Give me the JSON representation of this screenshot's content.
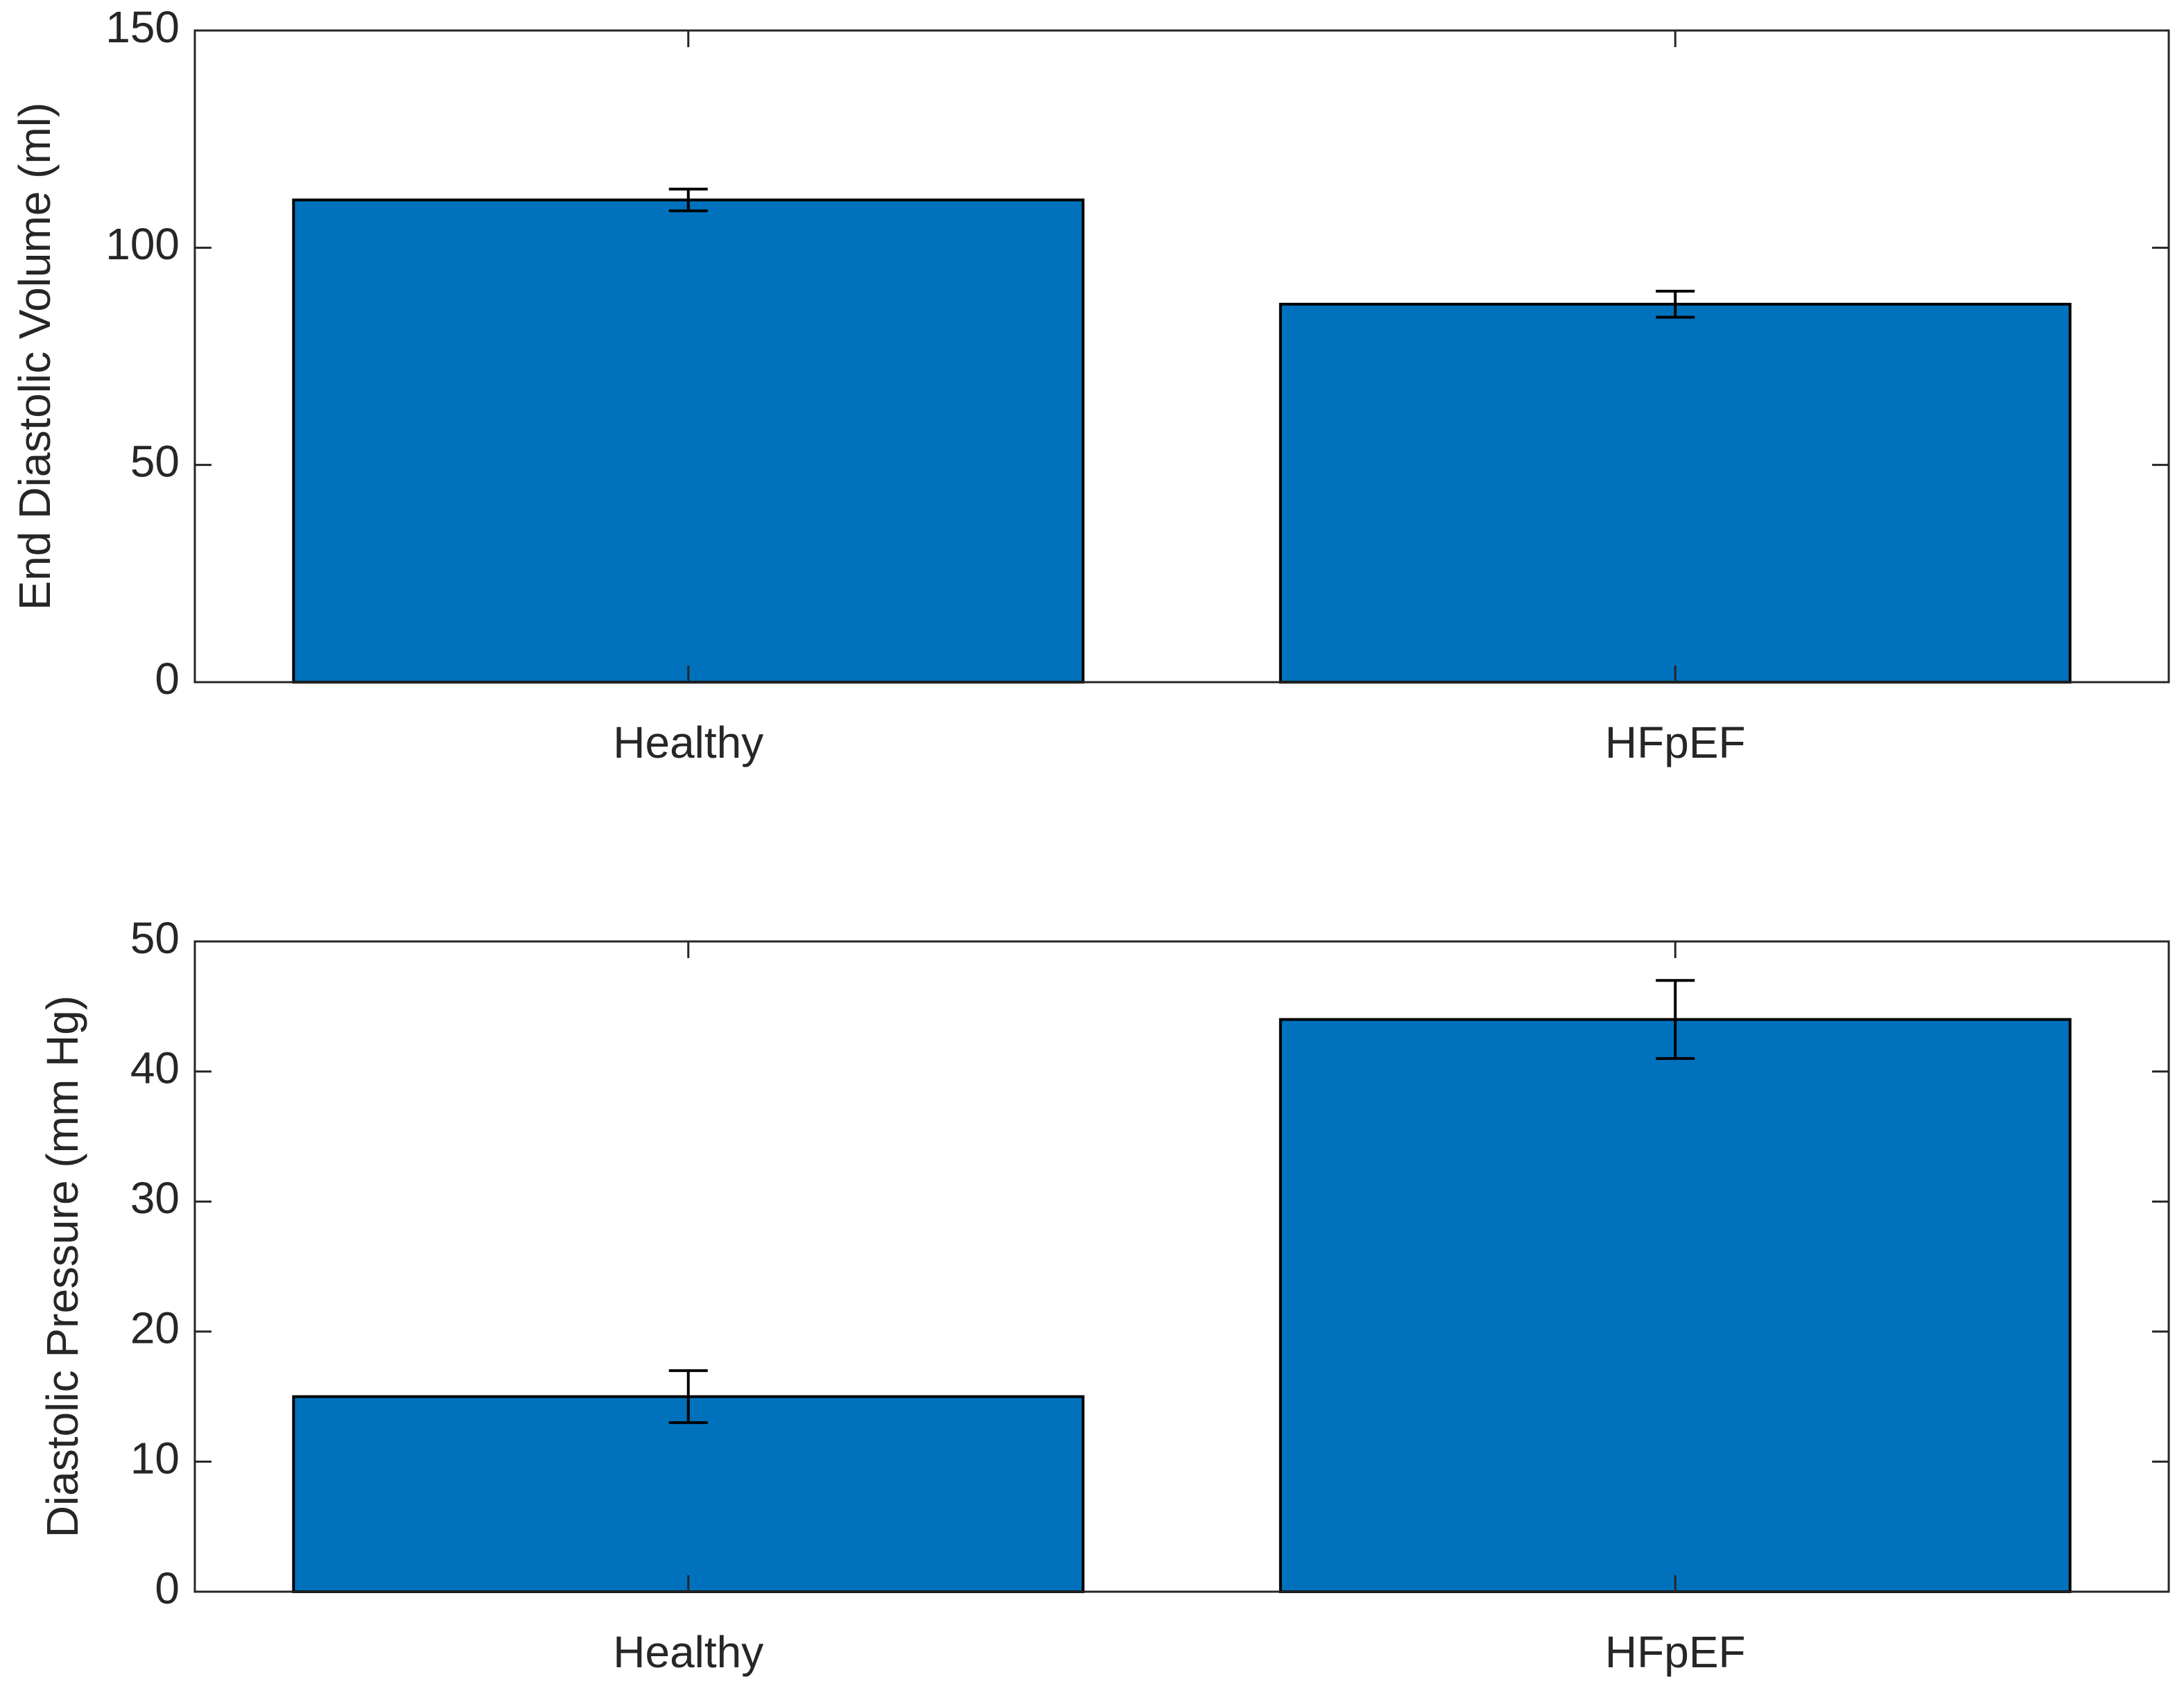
{
  "chart_data": [
    {
      "type": "bar",
      "ylabel": "End Diastolic Volume (ml)",
      "categories": [
        "Healthy",
        "HFpEF"
      ],
      "values": [
        111,
        87
      ],
      "errors": [
        2.5,
        3
      ],
      "color": "#0072bd",
      "ylim": [
        0,
        150
      ],
      "yticks": [
        0,
        50,
        100,
        150
      ]
    },
    {
      "type": "bar",
      "ylabel": "Diastolic Pressure (mm Hg)",
      "categories": [
        "Healthy",
        "HFpEF"
      ],
      "values": [
        15,
        44
      ],
      "errors": [
        2,
        3
      ],
      "color": "#0072bd",
      "ylim": [
        0,
        50
      ],
      "yticks": [
        0,
        10,
        20,
        30,
        40,
        50
      ]
    }
  ]
}
